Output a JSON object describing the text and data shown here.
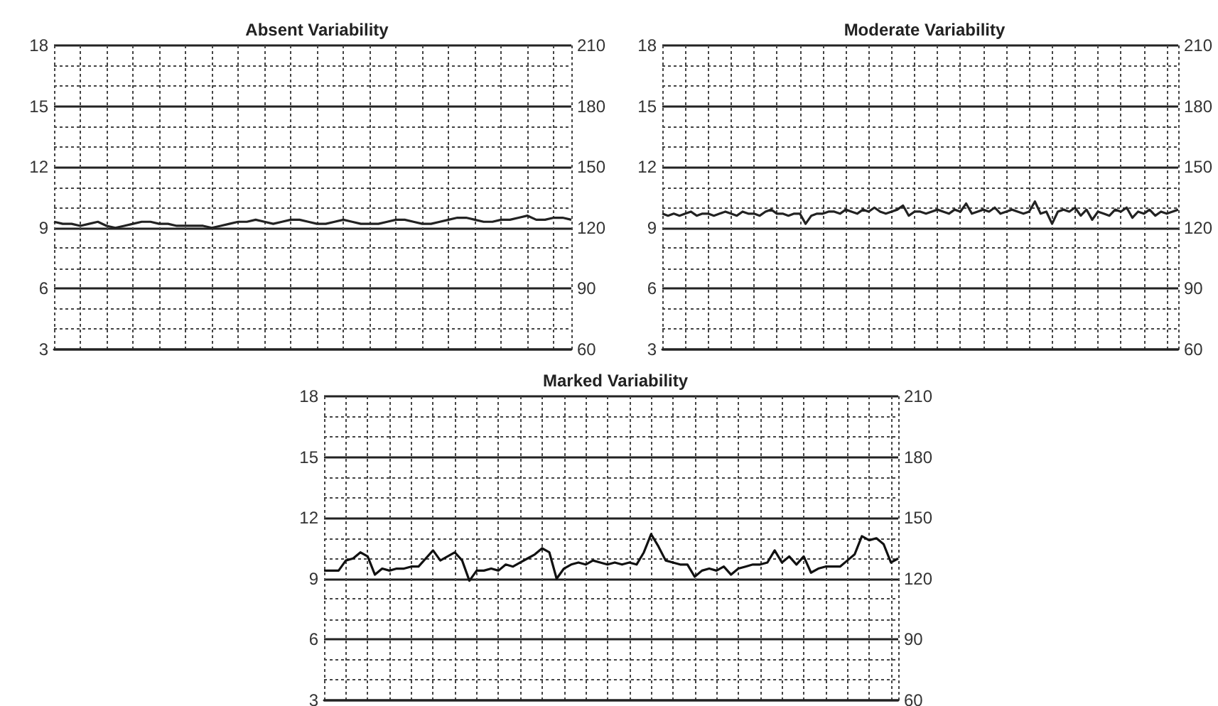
{
  "chart_data": [
    {
      "type": "line",
      "title": "Absent Variability",
      "categories": [
        null,
        null,
        null,
        null,
        null,
        null,
        null,
        null,
        null,
        null,
        null,
        null,
        null,
        null,
        null,
        null,
        null,
        null,
        null,
        null,
        null,
        null,
        null,
        null,
        null,
        null,
        null,
        null,
        null,
        null,
        null,
        null,
        null,
        null,
        null,
        null,
        null,
        null,
        null,
        null,
        null,
        null,
        null,
        null,
        null,
        null,
        null,
        null,
        null,
        null,
        null,
        null,
        null,
        null,
        null,
        null,
        null,
        null,
        null,
        null
      ],
      "series": [
        {
          "color": "#222222",
          "axis": "y2",
          "values": [
            123,
            122,
            122,
            121,
            122,
            123,
            121,
            120,
            121,
            122,
            123,
            123,
            122,
            122,
            121,
            121,
            121,
            121,
            120,
            121,
            122,
            123,
            123,
            124,
            123,
            122,
            123,
            124,
            124,
            123,
            122,
            122,
            123,
            124,
            123,
            122,
            122,
            122,
            123,
            124,
            124,
            123,
            122,
            122,
            123,
            124,
            125,
            125,
            124,
            123,
            123,
            124,
            124,
            125,
            126,
            124,
            124,
            125,
            125,
            124
          ]
        }
      ],
      "ylim": [
        3,
        18
      ],
      "yticks": [
        3,
        6,
        9,
        12,
        15,
        18
      ],
      "y2lim": [
        60,
        210
      ],
      "y2ticks": [
        60,
        90,
        120,
        150,
        180,
        210
      ],
      "grid": true
    },
    {
      "type": "line",
      "title": "Moderate Variability",
      "categories": [
        null,
        null,
        null,
        null,
        null,
        null,
        null,
        null,
        null,
        null,
        null,
        null,
        null,
        null,
        null,
        null,
        null,
        null,
        null,
        null,
        null,
        null,
        null,
        null,
        null,
        null,
        null,
        null,
        null,
        null,
        null,
        null,
        null,
        null,
        null,
        null,
        null,
        null,
        null,
        null,
        null,
        null,
        null,
        null,
        null,
        null,
        null,
        null,
        null,
        null,
        null,
        null,
        null,
        null,
        null,
        null,
        null,
        null,
        null,
        null,
        null,
        null,
        null,
        null,
        null,
        null,
        null,
        null,
        null,
        null,
        null,
        null,
        null,
        null,
        null,
        null,
        null,
        null,
        null,
        null,
        null,
        null,
        null,
        null,
        null,
        null,
        null,
        null,
        null,
        null,
        null
      ],
      "series": [
        {
          "color": "#222222",
          "axis": "y2",
          "values": [
            127,
            126,
            127,
            126,
            127,
            128,
            126,
            127,
            127,
            126,
            127,
            128,
            127,
            126,
            128,
            127,
            127,
            126,
            128,
            129,
            127,
            127,
            126,
            127,
            127,
            122,
            126,
            127,
            127,
            128,
            128,
            127,
            129,
            128,
            127,
            129,
            128,
            130,
            128,
            127,
            128,
            129,
            131,
            126,
            128,
            128,
            127,
            128,
            129,
            128,
            127,
            129,
            128,
            132,
            127,
            128,
            129,
            128,
            130,
            127,
            128,
            129,
            128,
            127,
            128,
            133,
            127,
            128,
            122,
            128,
            129,
            128,
            130,
            126,
            129,
            124,
            128,
            127,
            126,
            129,
            128,
            130,
            125,
            128,
            127,
            129,
            126,
            128,
            127,
            128,
            129
          ]
        }
      ],
      "ylim": [
        3,
        18
      ],
      "yticks": [
        3,
        6,
        9,
        12,
        15,
        18
      ],
      "y2lim": [
        60,
        210
      ],
      "y2ticks": [
        60,
        90,
        120,
        150,
        180,
        210
      ],
      "grid": true
    },
    {
      "type": "line",
      "title": "Marked Variability",
      "categories": [
        null,
        null,
        null,
        null,
        null,
        null,
        null,
        null,
        null,
        null,
        null,
        null,
        null,
        null,
        null,
        null,
        null,
        null,
        null,
        null,
        null,
        null,
        null,
        null,
        null,
        null,
        null,
        null,
        null,
        null,
        null,
        null,
        null,
        null,
        null,
        null,
        null,
        null,
        null,
        null,
        null,
        null,
        null,
        null,
        null,
        null,
        null,
        null,
        null,
        null,
        null,
        null,
        null,
        null,
        null,
        null,
        null,
        null,
        null,
        null,
        null,
        null,
        null,
        null,
        null,
        null,
        null,
        null,
        null,
        null,
        null,
        null,
        null,
        null,
        null,
        null,
        null,
        null,
        null,
        null
      ],
      "series": [
        {
          "color": "#111111",
          "axis": "y2",
          "values": [
            124,
            124,
            124,
            129,
            130,
            133,
            131,
            122,
            125,
            124,
            125,
            125,
            126,
            126,
            130,
            134,
            129,
            131,
            133,
            129,
            119,
            124,
            124,
            125,
            124,
            127,
            126,
            128,
            130,
            132,
            135,
            133,
            120,
            125,
            127,
            128,
            127,
            129,
            128,
            127,
            128,
            127,
            128,
            127,
            133,
            142,
            136,
            129,
            128,
            127,
            127,
            121,
            124,
            125,
            124,
            126,
            122,
            125,
            126,
            127,
            127,
            128,
            134,
            128,
            131,
            127,
            131,
            123,
            125,
            126,
            126,
            126,
            129,
            132,
            141,
            139,
            140,
            137,
            128,
            130
          ]
        }
      ],
      "ylim": [
        3,
        18
      ],
      "yticks": [
        3,
        6,
        9,
        12,
        15,
        18
      ],
      "y2lim": [
        60,
        210
      ],
      "y2ticks": [
        60,
        90,
        120,
        150,
        180,
        210
      ],
      "grid": true
    }
  ]
}
